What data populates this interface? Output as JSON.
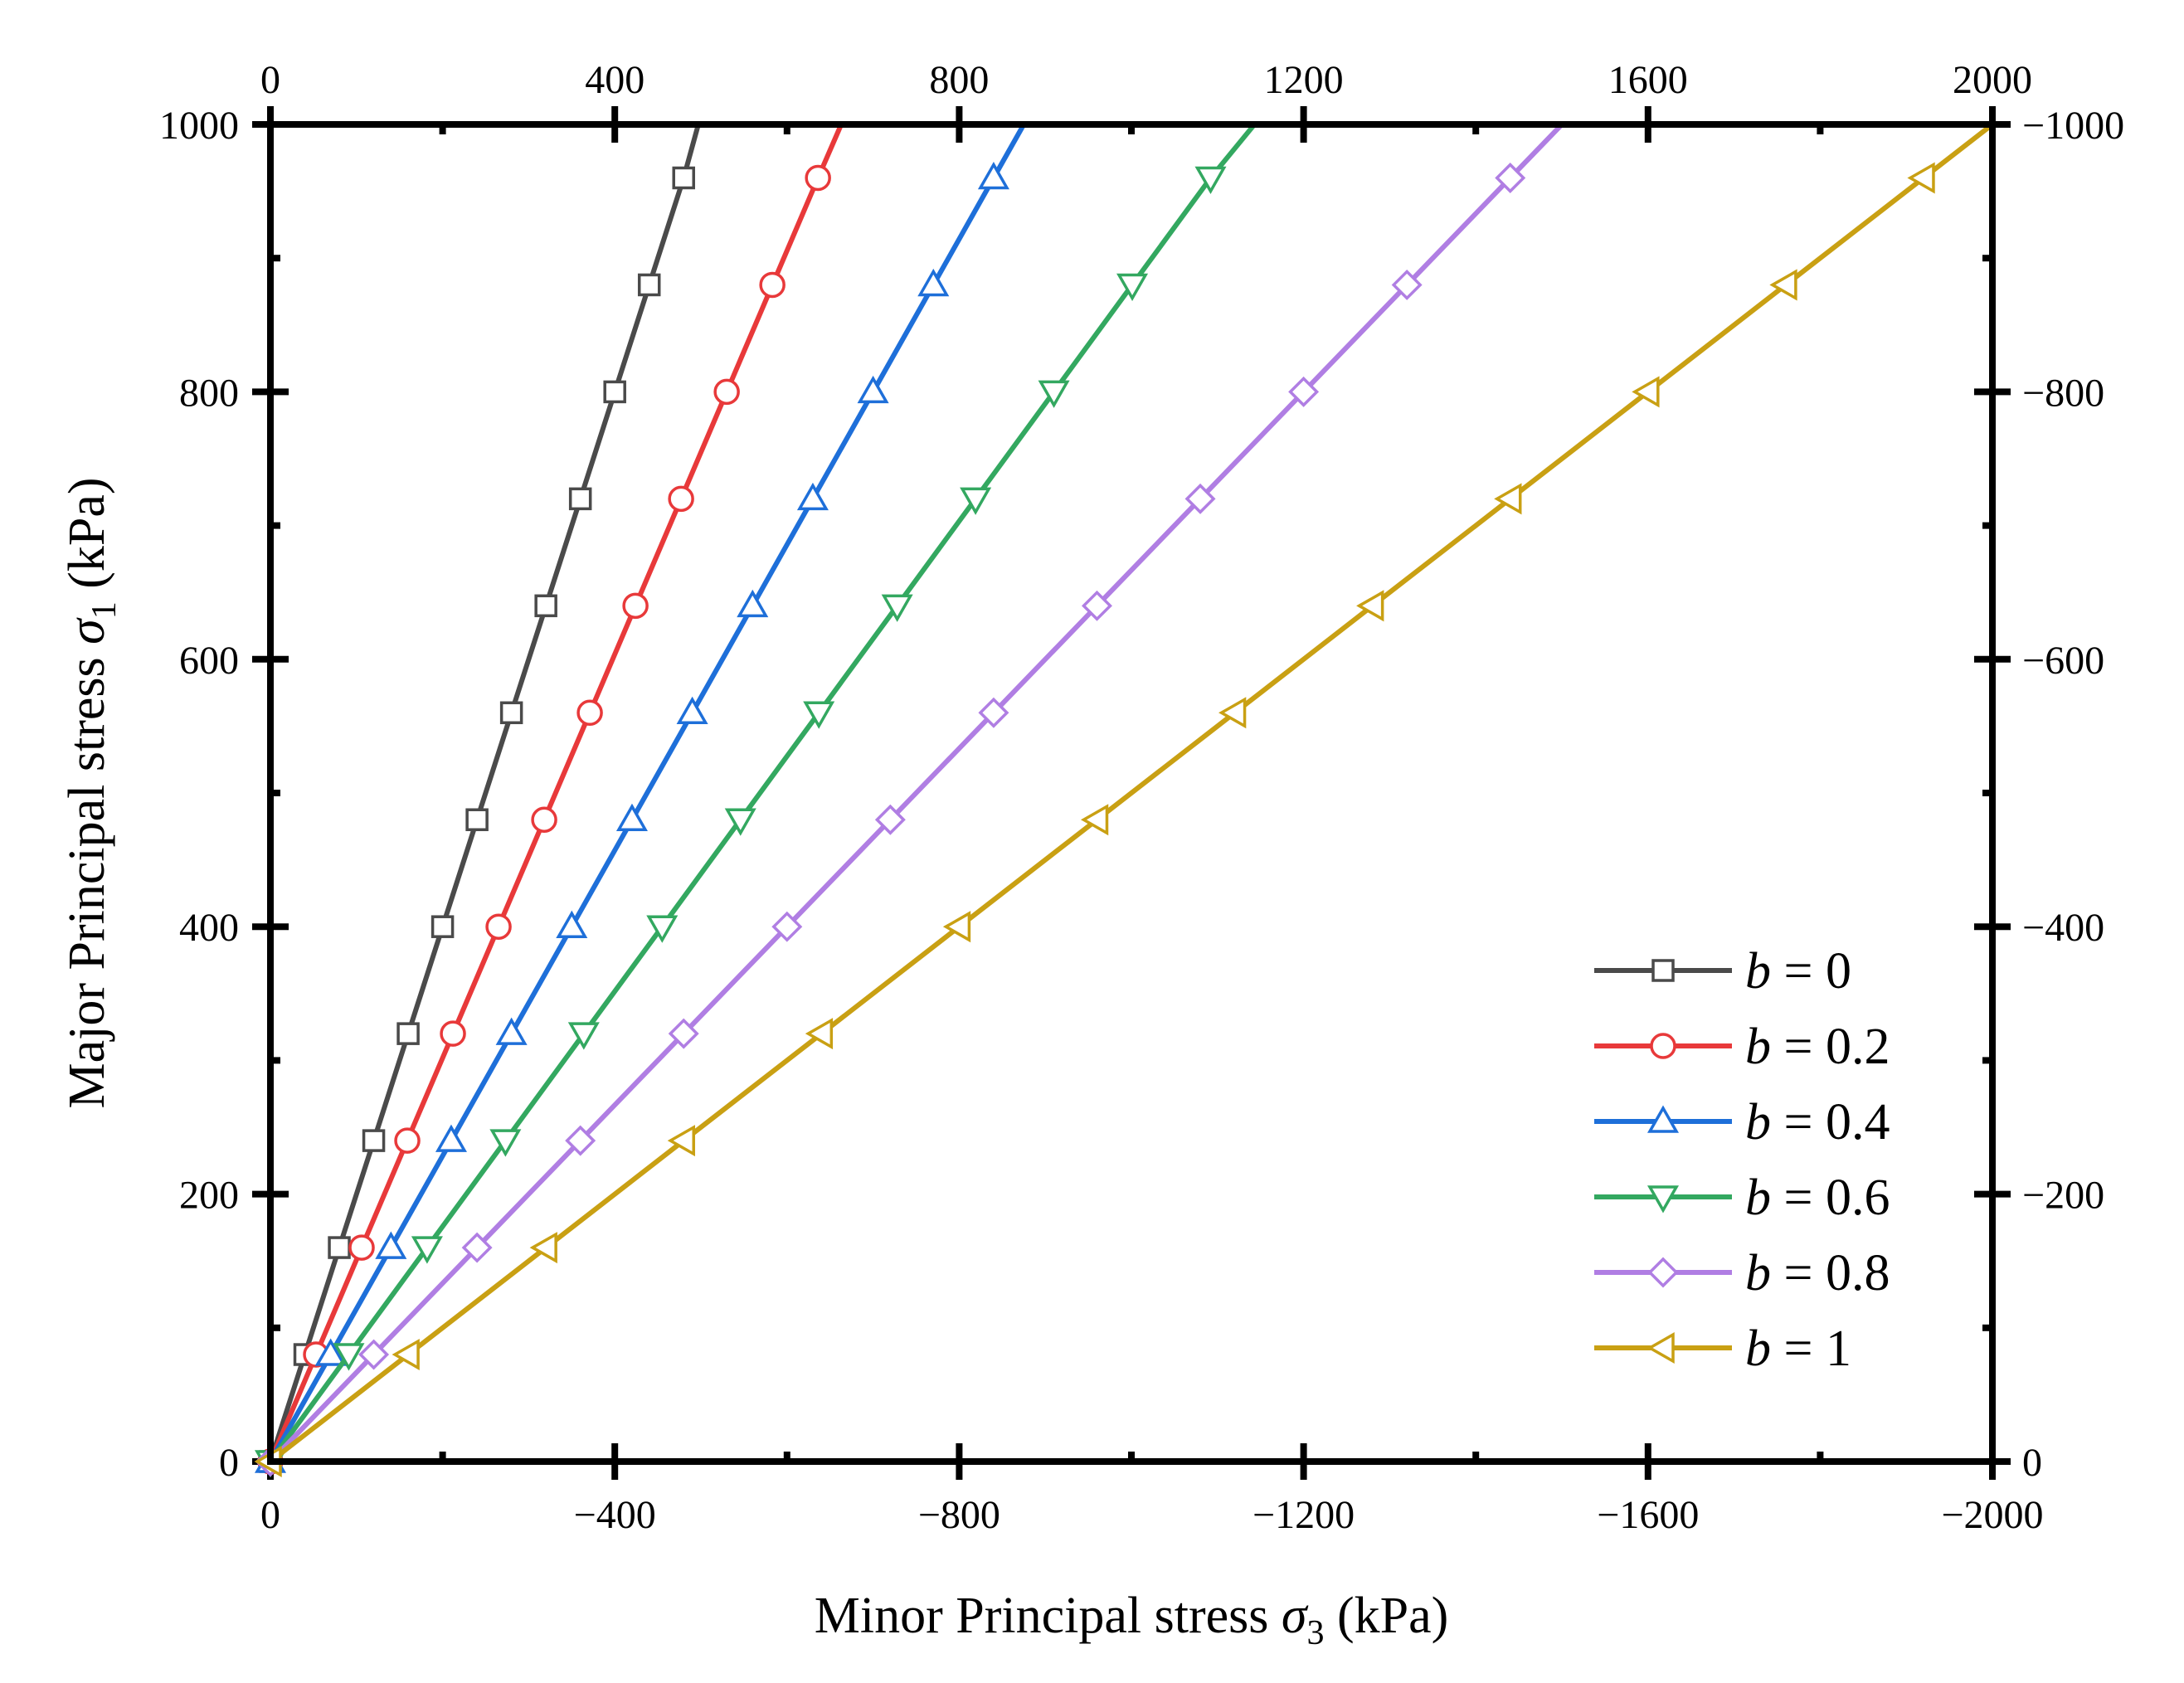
{
  "chart_data": {
    "type": "line",
    "xlabel": "Minor Principal stress",
    "xlabel_symbol": "σ",
    "xlabel_subscript": "3",
    "xlabel_unit": "(kPa)",
    "ylabel": "Major Principal stress",
    "ylabel_symbol": "σ",
    "ylabel_subscript": "1",
    "ylabel_unit": "(kPa)",
    "bottom_axis": {
      "range": [
        0,
        -2000
      ],
      "ticks": [
        0,
        -400,
        -800,
        -1200,
        -1600,
        -2000
      ],
      "tick_labels": [
        "0",
        "−400",
        "−800",
        "−1200",
        "−1600",
        "−2000"
      ]
    },
    "top_axis": {
      "range": [
        0,
        2000
      ],
      "ticks": [
        0,
        400,
        800,
        1200,
        1600,
        2000
      ],
      "tick_labels": [
        "0",
        "400",
        "800",
        "1200",
        "1600",
        "2000"
      ]
    },
    "left_axis": {
      "range": [
        0,
        1000
      ],
      "ticks": [
        0,
        200,
        400,
        600,
        800,
        1000
      ],
      "tick_labels": [
        "0",
        "200",
        "400",
        "600",
        "800",
        "1000"
      ]
    },
    "right_axis": {
      "range": [
        0,
        -1000
      ],
      "ticks": [
        0,
        -200,
        -400,
        -600,
        -800,
        -1000
      ],
      "tick_labels": [
        "0",
        "−200",
        "−400",
        "−600",
        "−800",
        "−1000"
      ]
    },
    "legend_position": "bottom-right",
    "series": [
      {
        "name": "b = 0",
        "b_symbol": "b",
        "b_value": "= 0",
        "color": "#4a4a4a",
        "marker": "square",
        "x": [
          0,
          40,
          80,
          120,
          160,
          200,
          240,
          280,
          320,
          360,
          400,
          440,
          480,
          497
        ],
        "y": [
          0,
          80,
          160,
          240,
          320,
          400,
          480,
          560,
          640,
          720,
          800,
          880,
          960,
          1000
        ]
      },
      {
        "name": "b = 0.2",
        "b_symbol": "b",
        "b_value": "= 0.2",
        "color": "#e8393a",
        "marker": "circle",
        "x": [
          0,
          53,
          106,
          159,
          212,
          265,
          318,
          371,
          424,
          477,
          530,
          583,
          636,
          663
        ],
        "y": [
          0,
          80,
          160,
          240,
          320,
          400,
          480,
          560,
          640,
          720,
          800,
          880,
          960,
          1000
        ]
      },
      {
        "name": "b = 0.4",
        "b_symbol": "b",
        "b_value": "= 0.4",
        "color": "#1e6fd9",
        "marker": "triangle-up",
        "x": [
          0,
          70,
          140,
          210,
          280,
          350,
          420,
          490,
          560,
          630,
          700,
          770,
          840,
          875
        ],
        "y": [
          0,
          80,
          160,
          240,
          320,
          400,
          480,
          560,
          640,
          720,
          800,
          880,
          960,
          1000
        ]
      },
      {
        "name": "b = 0.6",
        "b_symbol": "b",
        "b_value": "= 0.6",
        "color": "#33a860",
        "marker": "triangle-down",
        "x": [
          0,
          91,
          182,
          273,
          364,
          455,
          546,
          637,
          728,
          819,
          910,
          1001,
          1092,
          1143
        ],
        "y": [
          0,
          80,
          160,
          240,
          320,
          400,
          480,
          560,
          640,
          720,
          800,
          880,
          960,
          1000
        ]
      },
      {
        "name": "b = 0.8",
        "b_symbol": "b",
        "b_value": "= 0.8",
        "color": "#b07ee3",
        "marker": "diamond",
        "x": [
          0,
          120,
          240,
          360,
          480,
          600,
          720,
          840,
          960,
          1080,
          1200,
          1320,
          1440,
          1500
        ],
        "y": [
          0,
          80,
          160,
          240,
          320,
          400,
          480,
          560,
          640,
          720,
          800,
          880,
          960,
          1000
        ]
      },
      {
        "name": "b = 1",
        "b_symbol": "b",
        "b_value": "= 1",
        "color": "#c9a013",
        "marker": "triangle-left",
        "x": [
          0,
          160,
          320,
          480,
          640,
          800,
          960,
          1120,
          1280,
          1440,
          1600,
          1760,
          1920,
          2000
        ],
        "y": [
          0,
          80,
          160,
          240,
          320,
          400,
          480,
          560,
          640,
          720,
          800,
          880,
          960,
          1000
        ]
      }
    ]
  }
}
